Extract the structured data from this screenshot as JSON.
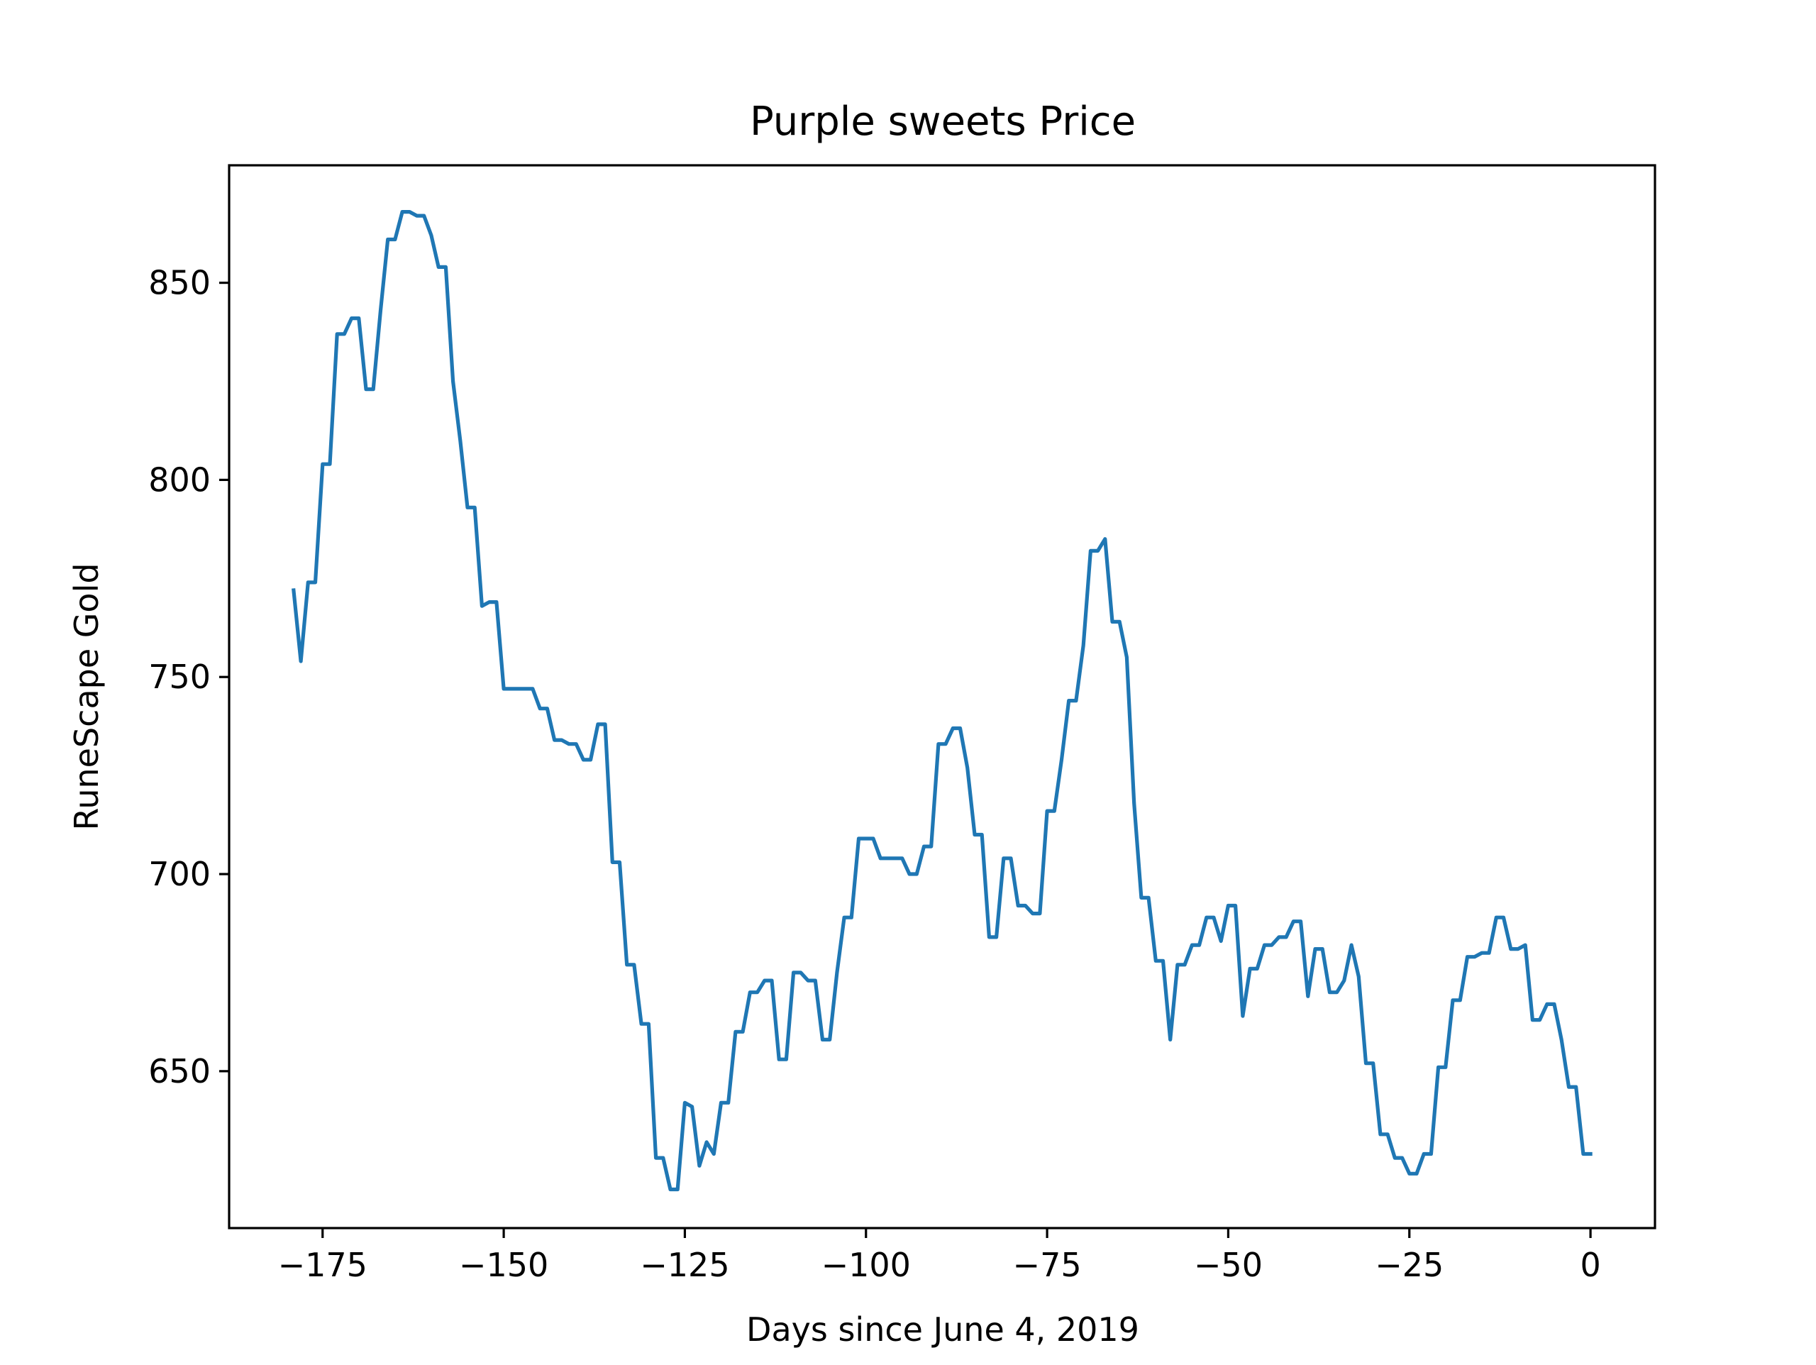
{
  "chart_data": {
    "type": "line",
    "title": "Purple sweets Price",
    "xlabel": "Days since June 4, 2019",
    "ylabel": "RuneScape Gold",
    "xlim": [
      -187.9,
      8.9
    ],
    "ylim": [
      610.2,
      879.8
    ],
    "grid": false,
    "x_ticks": [
      -175,
      -150,
      -125,
      -100,
      -75,
      -50,
      -25,
      0
    ],
    "x_tick_labels": [
      "−175",
      "−150",
      "−125",
      "−100",
      "−75",
      "−50",
      "−25",
      "0"
    ],
    "y_ticks": [
      650,
      700,
      750,
      800,
      850
    ],
    "y_tick_labels": [
      "650",
      "700",
      "750",
      "800",
      "850"
    ],
    "colors": {
      "line": "#1f77b4",
      "axes": "#000000",
      "background": "#ffffff"
    },
    "series": [
      {
        "x": [
          -179,
          -178,
          -177,
          -176,
          -175,
          -174,
          -173,
          -172,
          -171,
          -170,
          -169,
          -168,
          -167,
          -166,
          -165,
          -164,
          -163,
          -162,
          -161,
          -160,
          -159,
          -158,
          -157,
          -156,
          -155,
          -154,
          -153,
          -152,
          -151,
          -150,
          -149,
          -148,
          -147,
          -146,
          -145,
          -144,
          -143,
          -142,
          -141,
          -140,
          -139,
          -138,
          -137,
          -136,
          -135,
          -134,
          -133,
          -132,
          -131,
          -130,
          -129,
          -128,
          -127,
          -126,
          -125,
          -124,
          -123,
          -122,
          -121,
          -120,
          -119,
          -118,
          -117,
          -116,
          -115,
          -114,
          -113,
          -112,
          -111,
          -110,
          -109,
          -108,
          -107,
          -106,
          -105,
          -104,
          -103,
          -102,
          -101,
          -100,
          -99,
          -98,
          -97,
          -96,
          -95,
          -94,
          -93,
          -92,
          -91,
          -90,
          -89,
          -88,
          -87,
          -86,
          -85,
          -84,
          -83,
          -82,
          -81,
          -80,
          -79,
          -78,
          -77,
          -76,
          -75,
          -74,
          -73,
          -72,
          -71,
          -70,
          -69,
          -68,
          -67,
          -66,
          -65,
          -64,
          -63,
          -62,
          -61,
          -60,
          -59,
          -58,
          -57,
          -56,
          -55,
          -54,
          -53,
          -52,
          -51,
          -50,
          -49,
          -48,
          -47,
          -46,
          -45,
          -44,
          -43,
          -42,
          -41,
          -40,
          -39,
          -38,
          -37,
          -36,
          -35,
          -34,
          -33,
          -32,
          -31,
          -30,
          -29,
          -28,
          -27,
          -26,
          -25,
          -24,
          -23,
          -22,
          -21,
          -20,
          -19,
          -18,
          -17,
          -16,
          -15,
          -14,
          -13,
          -12,
          -11,
          -10,
          -9,
          -8,
          -7,
          -6,
          -5,
          -4,
          -3,
          -2,
          -1,
          0
        ],
        "y": [
          772,
          754,
          774,
          774,
          804,
          804,
          837,
          837,
          841,
          841,
          823,
          823,
          843,
          861,
          861,
          868,
          868,
          867,
          867,
          862,
          854,
          854,
          825,
          810,
          793,
          793,
          768,
          769,
          769,
          747,
          747,
          747,
          747,
          747,
          742,
          742,
          734,
          734,
          733,
          733,
          729,
          729,
          738,
          738,
          703,
          703,
          677,
          677,
          662,
          662,
          628,
          628,
          620,
          620,
          642,
          641,
          626,
          632,
          629,
          642,
          642,
          660,
          660,
          670,
          670,
          673,
          673,
          653,
          653,
          675,
          675,
          673,
          673,
          658,
          658,
          675,
          689,
          689,
          709,
          709,
          709,
          704,
          704,
          704,
          704,
          700,
          700,
          707,
          707,
          733,
          733,
          737,
          737,
          727,
          710,
          710,
          684,
          684,
          704,
          704,
          692,
          692,
          690,
          690,
          716,
          716,
          729,
          744,
          744,
          758,
          782,
          782,
          785,
          764,
          764,
          755,
          718,
          694,
          694,
          678,
          678,
          658,
          677,
          677,
          682,
          682,
          689,
          689,
          683,
          692,
          692,
          664,
          676,
          676,
          682,
          682,
          684,
          684,
          688,
          688,
          669,
          681,
          681,
          670,
          670,
          673,
          682,
          674,
          652,
          652,
          634,
          634,
          628,
          628,
          624,
          624,
          629,
          629,
          651,
          651,
          668,
          668,
          679,
          679,
          680,
          680,
          689,
          689,
          681,
          681,
          682,
          663,
          663,
          667,
          667,
          658,
          646,
          646,
          629,
          629
        ]
      }
    ]
  }
}
